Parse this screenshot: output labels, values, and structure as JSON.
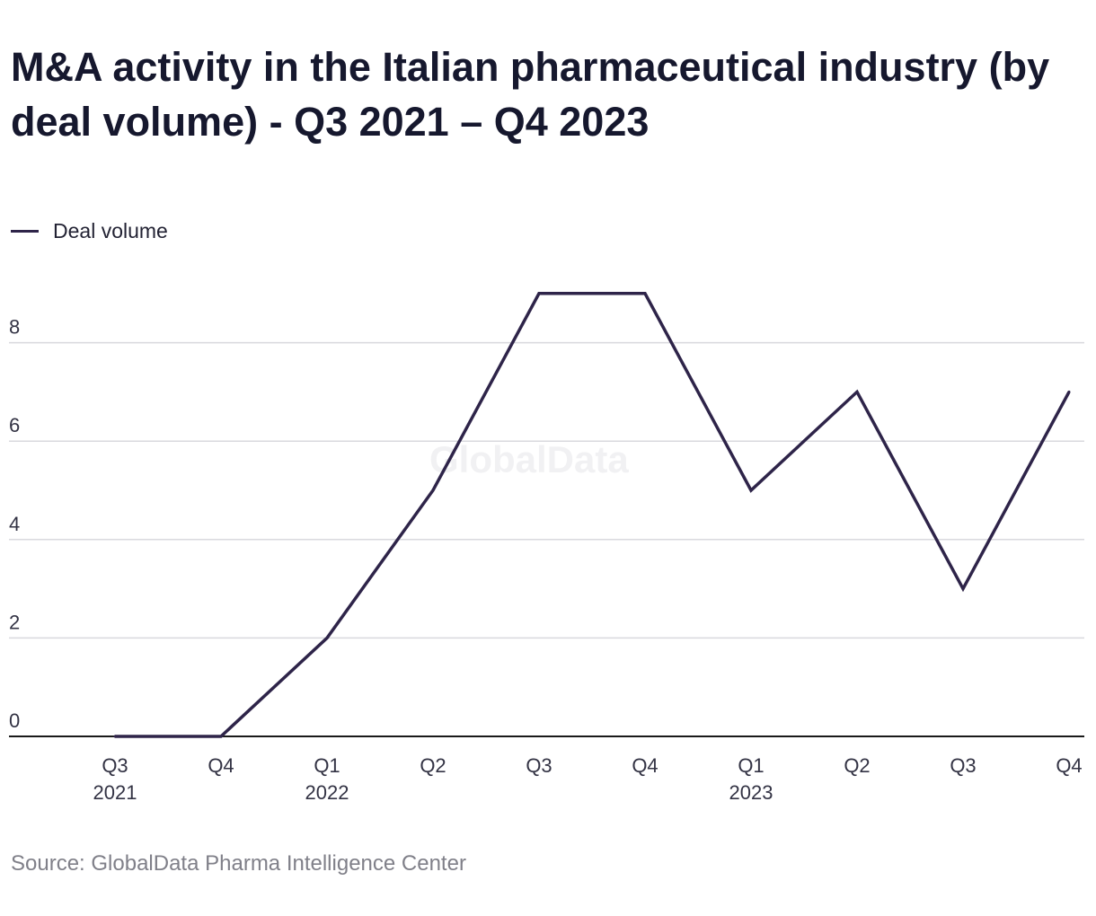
{
  "header": {
    "title": "M&A activity in the Italian pharmaceutical industry (by deal volume) - Q3 2021 – Q4 2023"
  },
  "legend": {
    "label": "Deal volume",
    "color": "#2e2449"
  },
  "watermark": "GlobalData",
  "source": "Source: GlobalData Pharma Intelligence Center",
  "chart_data": {
    "type": "line",
    "title": "M&A activity in the Italian pharmaceutical industry (by deal volume) - Q3 2021 – Q4 2023",
    "xlabel": "",
    "ylabel": "",
    "categories": [
      [
        "Q3",
        "2021"
      ],
      [
        "Q4",
        ""
      ],
      [
        "Q1",
        "2022"
      ],
      [
        "Q2",
        ""
      ],
      [
        "Q3",
        ""
      ],
      [
        "Q4",
        ""
      ],
      [
        "Q1",
        "2023"
      ],
      [
        "Q2",
        ""
      ],
      [
        "Q3",
        ""
      ],
      [
        "Q4",
        ""
      ]
    ],
    "series": [
      {
        "name": "Deal volume",
        "color": "#2e2449",
        "values": [
          0,
          0,
          2,
          5,
          9,
          9,
          5,
          7,
          3,
          7
        ]
      }
    ],
    "ylim": [
      0,
      9.3
    ],
    "yticks": [
      0,
      2,
      4,
      6,
      8
    ],
    "grid": true,
    "legend_position": "top-left"
  }
}
